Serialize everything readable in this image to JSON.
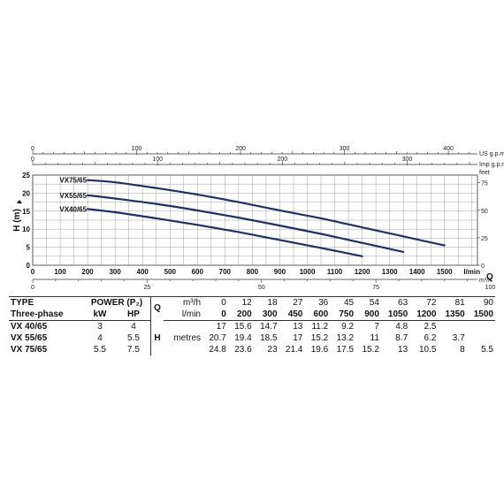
{
  "chart_data": {
    "type": "line",
    "x_label": "l/min",
    "y_label": "H (m)",
    "y_right_label": "feet",
    "q_label": "Q",
    "top_axis_usgpm": {
      "label": "US g.p.m.",
      "ticks": [
        0,
        100,
        200,
        300,
        400
      ]
    },
    "top_axis_imp": {
      "label": "Imp g.p.m.",
      "ticks": [
        0,
        100,
        200,
        300
      ]
    },
    "bottom_axis_m3h": {
      "label": "m³/h",
      "ticks": [
        0,
        25,
        50,
        75,
        100
      ]
    },
    "x_ticks": [
      0,
      100,
      200,
      300,
      400,
      500,
      600,
      700,
      800,
      900,
      1000,
      1100,
      1200,
      1300,
      1400,
      1500
    ],
    "y_ticks": [
      0,
      5,
      10,
      15,
      20,
      25
    ],
    "y_right_ticks": [
      0,
      25,
      50,
      75
    ],
    "xlim": [
      0,
      1620
    ],
    "ylim": [
      0,
      25
    ],
    "series": [
      {
        "name": "VX75/65",
        "x": [
          200,
          300,
          450,
          600,
          750,
          900,
          1050,
          1200,
          1350,
          1500
        ],
        "y": [
          23.6,
          23,
          21.4,
          19.6,
          17.5,
          15.2,
          13,
          10.5,
          8,
          5.5
        ]
      },
      {
        "name": "VX55/65",
        "x": [
          200,
          300,
          450,
          600,
          750,
          900,
          1050,
          1200,
          1350
        ],
        "y": [
          19.4,
          18.5,
          17,
          15.2,
          13.2,
          11,
          8.7,
          6.2,
          3.7
        ]
      },
      {
        "name": "VX40/65",
        "x": [
          200,
          300,
          450,
          600,
          750,
          900,
          1050,
          1200
        ],
        "y": [
          15.6,
          14.7,
          13,
          11.2,
          9.2,
          7,
          4.8,
          2.5
        ]
      }
    ]
  },
  "table": {
    "type_label": "TYPE",
    "phase_label": "Three-phase",
    "power_label": "POWER (P₂)",
    "kw_label": "kW",
    "hp_label": "HP",
    "q_label": "Q",
    "m3h_label": "m³/h",
    "lmin_label": "l/min",
    "h_label": "H",
    "metres_label": "metres",
    "m3h_values": [
      "0",
      "12",
      "18",
      "27",
      "36",
      "45",
      "54",
      "63",
      "72",
      "81",
      "90"
    ],
    "lmin_values": [
      "0",
      "200",
      "300",
      "450",
      "600",
      "750",
      "900",
      "1050",
      "1200",
      "1350",
      "1500"
    ],
    "rows": [
      {
        "type": "VX 40/65",
        "kw": "3",
        "hp": "4",
        "h": [
          "17",
          "15.6",
          "14.7",
          "13",
          "11.2",
          "9.2",
          "7",
          "4.8",
          "2.5",
          "",
          ""
        ]
      },
      {
        "type": "VX 55/65",
        "kw": "4",
        "hp": "5.5",
        "h": [
          "20.7",
          "19.4",
          "18.5",
          "17",
          "15.2",
          "13.2",
          "11",
          "8.7",
          "6.2",
          "3.7",
          ""
        ]
      },
      {
        "type": "VX 75/65",
        "kw": "5.5",
        "hp": "7.5",
        "h": [
          "24.8",
          "23.6",
          "23",
          "21.4",
          "19.6",
          "17.5",
          "15.2",
          "13",
          "10.5",
          "8",
          "5.5"
        ]
      }
    ]
  },
  "colors": {
    "curve": "#1f2f6e",
    "grid": "#8a8a8a",
    "axis": "#333333"
  }
}
